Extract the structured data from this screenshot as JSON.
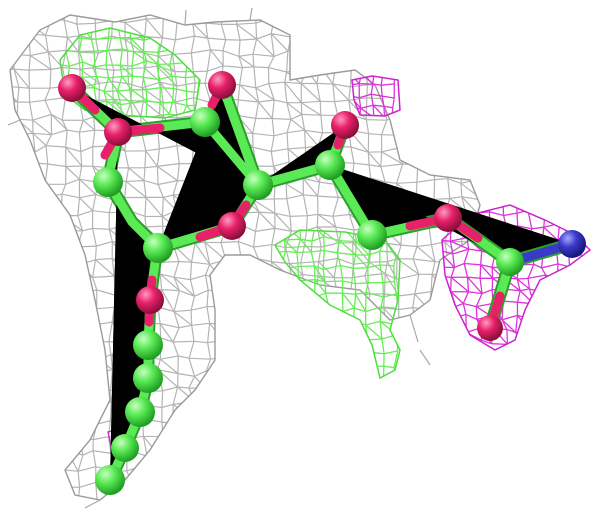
{
  "figure": {
    "kind": "molecular-density-render",
    "colors": {
      "background": "#ffffff",
      "density_mesh": "#b4b4b4",
      "positive_difference_mesh": "#66ee55",
      "negative_difference_mesh": "#dd33dd",
      "carbon": "#55e855",
      "oxygen": "#e8206a",
      "nitrogen": "#3a3ac8"
    }
  }
}
